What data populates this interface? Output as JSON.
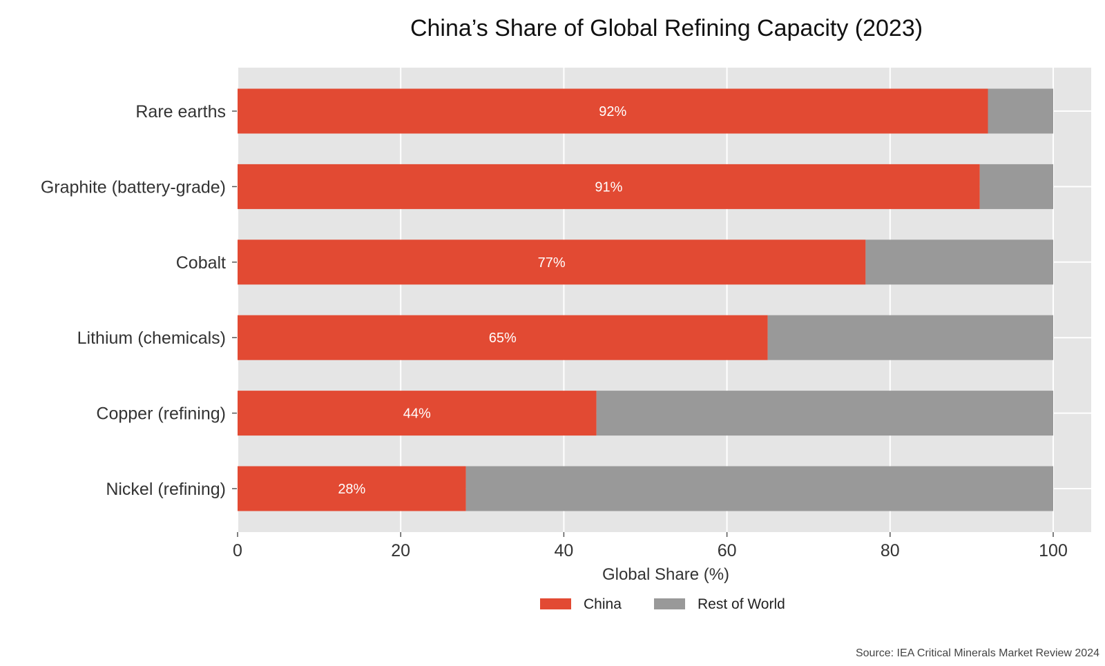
{
  "chart_data": {
    "type": "bar",
    "orientation": "horizontal",
    "stacked": true,
    "title": "China’s Share of Global Refining Capacity (2023)",
    "xlabel": "Global Share (%)",
    "ylabel": "",
    "xlim": [
      0,
      100
    ],
    "x_ticks": [
      "0",
      "20",
      "40",
      "60",
      "80",
      "100"
    ],
    "categories": [
      "Rare earths",
      "Graphite (battery-grade)",
      "Cobalt",
      "Lithium (chemicals)",
      "Copper (refining)",
      "Nickel (refining)"
    ],
    "series": [
      {
        "name": "China",
        "color": "#e24a33",
        "values": [
          92,
          91,
          77,
          65,
          44,
          28
        ],
        "data_labels": [
          "92%",
          "91%",
          "77%",
          "65%",
          "44%",
          "28%"
        ]
      },
      {
        "name": "Rest of World",
        "color": "#999999",
        "values": [
          8,
          9,
          23,
          35,
          56,
          72
        ]
      }
    ],
    "legend": {
      "position": "bottom-center",
      "entries": [
        "China",
        "Rest of World"
      ]
    },
    "grid": true,
    "background": "#e5e5e5",
    "source": "Source: IEA Critical Minerals Market Review 2024"
  }
}
